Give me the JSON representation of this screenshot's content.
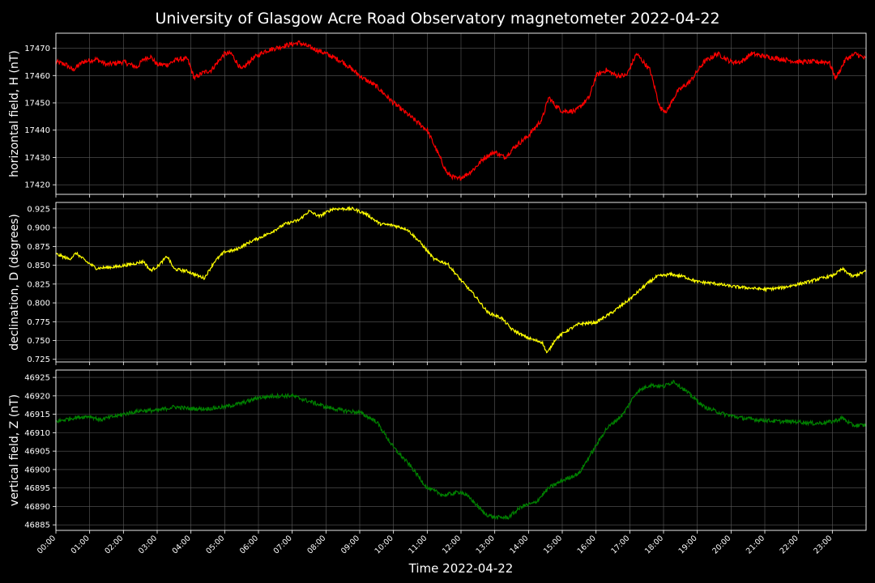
{
  "chart_data": {
    "type": "line",
    "title": "University of Glasgow Acre Road Observatory magnetometer 2022-04-22",
    "xlabel": "Time 2022-04-22",
    "x_ticks": [
      "00:00",
      "01:00",
      "02:00",
      "03:00",
      "04:00",
      "05:00",
      "06:00",
      "07:00",
      "08:00",
      "09:00",
      "10:00",
      "11:00",
      "12:00",
      "13:00",
      "14:00",
      "15:00",
      "16:00",
      "17:00",
      "18:00",
      "19:00",
      "20:00",
      "21:00",
      "22:00",
      "23:00"
    ],
    "xlim_hours": [
      0,
      24
    ],
    "grid": true,
    "colors": {
      "background": "#000000",
      "grid": "#5a5a5a",
      "text": "#ffffff"
    },
    "panels": [
      {
        "ylabel": "horizontal field, H (nT)",
        "color": "#ff0000",
        "ylim": [
          17416.5,
          17475.5
        ],
        "y_ticks": [
          17420,
          17430,
          17440,
          17450,
          17460,
          17470
        ],
        "y_tick_labels": [
          "17420",
          "17430",
          "17440",
          "17450",
          "17460",
          "17470"
        ],
        "noise": 0.9,
        "points": [
          [
            0,
            17465
          ],
          [
            0.3,
            17464
          ],
          [
            0.5,
            17462
          ],
          [
            0.8,
            17465
          ],
          [
            1.2,
            17466
          ],
          [
            1.5,
            17464
          ],
          [
            2,
            17465
          ],
          [
            2.4,
            17463
          ],
          [
            2.6,
            17466
          ],
          [
            2.8,
            17467
          ],
          [
            3.0,
            17464
          ],
          [
            3.3,
            17464
          ],
          [
            3.6,
            17466
          ],
          [
            3.9,
            17466
          ],
          [
            4.1,
            17459
          ],
          [
            4.35,
            17461
          ],
          [
            4.6,
            17462
          ],
          [
            4.8,
            17465
          ],
          [
            5.0,
            17468
          ],
          [
            5.2,
            17468
          ],
          [
            5.5,
            17462
          ],
          [
            5.8,
            17466
          ],
          [
            6.2,
            17469
          ],
          [
            6.8,
            17471
          ],
          [
            7.2,
            17472
          ],
          [
            7.6,
            17470
          ],
          [
            8.0,
            17468
          ],
          [
            8.5,
            17465
          ],
          [
            8.8,
            17462
          ],
          [
            9.1,
            17459
          ],
          [
            9.5,
            17456
          ],
          [
            10.0,
            17450
          ],
          [
            10.5,
            17445
          ],
          [
            11.0,
            17440
          ],
          [
            11.3,
            17432
          ],
          [
            11.6,
            17424
          ],
          [
            11.9,
            17422
          ],
          [
            12.2,
            17424
          ],
          [
            12.4,
            17426
          ],
          [
            12.7,
            17430
          ],
          [
            13.0,
            17432
          ],
          [
            13.3,
            17430
          ],
          [
            13.6,
            17434
          ],
          [
            14.0,
            17438
          ],
          [
            14.4,
            17444
          ],
          [
            14.6,
            17452
          ],
          [
            14.8,
            17449
          ],
          [
            15.0,
            17447
          ],
          [
            15.4,
            17447
          ],
          [
            15.8,
            17452
          ],
          [
            16.0,
            17460
          ],
          [
            16.3,
            17462
          ],
          [
            16.6,
            17460
          ],
          [
            16.9,
            17460
          ],
          [
            17.2,
            17468
          ],
          [
            17.6,
            17462
          ],
          [
            17.9,
            17448
          ],
          [
            18.1,
            17447
          ],
          [
            18.4,
            17454
          ],
          [
            18.8,
            17458
          ],
          [
            19.2,
            17465
          ],
          [
            19.6,
            17468
          ],
          [
            20.0,
            17465
          ],
          [
            20.3,
            17465
          ],
          [
            20.6,
            17468
          ],
          [
            21.0,
            17467
          ],
          [
            21.5,
            17466
          ],
          [
            22.0,
            17465
          ],
          [
            22.5,
            17465
          ],
          [
            22.9,
            17465
          ],
          [
            23.1,
            17459
          ],
          [
            23.4,
            17466
          ],
          [
            23.7,
            17468
          ],
          [
            24,
            17466
          ]
        ]
      },
      {
        "ylabel": "declination, D (degrees)",
        "color": "#ffff00",
        "ylim": [
          0.7215,
          0.9335
        ],
        "y_ticks": [
          0.725,
          0.75,
          0.775,
          0.8,
          0.825,
          0.85,
          0.875,
          0.9,
          0.925
        ],
        "y_tick_labels": [
          "0.725",
          "0.750",
          "0.775",
          "0.800",
          "0.825",
          "0.850",
          "0.875",
          "0.900",
          "0.925"
        ],
        "noise": 0.002,
        "points": [
          [
            0,
            0.865
          ],
          [
            0.4,
            0.858
          ],
          [
            0.6,
            0.866
          ],
          [
            0.9,
            0.855
          ],
          [
            1.2,
            0.846
          ],
          [
            1.8,
            0.848
          ],
          [
            2.3,
            0.852
          ],
          [
            2.6,
            0.855
          ],
          [
            2.8,
            0.843
          ],
          [
            3.0,
            0.848
          ],
          [
            3.3,
            0.862
          ],
          [
            3.5,
            0.845
          ],
          [
            3.9,
            0.842
          ],
          [
            4.2,
            0.836
          ],
          [
            4.4,
            0.833
          ],
          [
            4.7,
            0.855
          ],
          [
            5.0,
            0.868
          ],
          [
            5.3,
            0.87
          ],
          [
            5.8,
            0.882
          ],
          [
            6.3,
            0.892
          ],
          [
            6.8,
            0.905
          ],
          [
            7.2,
            0.91
          ],
          [
            7.5,
            0.922
          ],
          [
            7.8,
            0.915
          ],
          [
            8.2,
            0.925
          ],
          [
            8.8,
            0.925
          ],
          [
            9.2,
            0.918
          ],
          [
            9.6,
            0.905
          ],
          [
            10.0,
            0.903
          ],
          [
            10.4,
            0.898
          ],
          [
            10.8,
            0.88
          ],
          [
            11.2,
            0.858
          ],
          [
            11.6,
            0.852
          ],
          [
            12.0,
            0.83
          ],
          [
            12.4,
            0.81
          ],
          [
            12.8,
            0.787
          ],
          [
            13.2,
            0.78
          ],
          [
            13.5,
            0.765
          ],
          [
            13.9,
            0.755
          ],
          [
            14.2,
            0.75
          ],
          [
            14.4,
            0.748
          ],
          [
            14.55,
            0.733
          ],
          [
            14.8,
            0.752
          ],
          [
            15.1,
            0.762
          ],
          [
            15.5,
            0.772
          ],
          [
            16.0,
            0.774
          ],
          [
            16.5,
            0.788
          ],
          [
            17.0,
            0.805
          ],
          [
            17.5,
            0.825
          ],
          [
            17.8,
            0.835
          ],
          [
            18.2,
            0.838
          ],
          [
            18.6,
            0.835
          ],
          [
            19.0,
            0.828
          ],
          [
            19.5,
            0.826
          ],
          [
            20.0,
            0.822
          ],
          [
            20.5,
            0.82
          ],
          [
            21.0,
            0.818
          ],
          [
            21.5,
            0.82
          ],
          [
            22.0,
            0.825
          ],
          [
            22.3,
            0.828
          ],
          [
            22.6,
            0.832
          ],
          [
            23.0,
            0.836
          ],
          [
            23.3,
            0.845
          ],
          [
            23.6,
            0.835
          ],
          [
            24,
            0.842
          ]
        ]
      },
      {
        "ylabel": "vertical field, Z (nT)",
        "color": "#008000",
        "ylim": [
          46883.5,
          46927
        ],
        "y_ticks": [
          46885,
          46890,
          46895,
          46900,
          46905,
          46910,
          46915,
          46920,
          46925
        ],
        "y_tick_labels": [
          "46885",
          "46890",
          "46895",
          "46900",
          "46905",
          "46910",
          "46915",
          "46920",
          "46925"
        ],
        "noise": 0.55,
        "points": [
          [
            0,
            46913
          ],
          [
            0.5,
            46914
          ],
          [
            1.0,
            46914.5
          ],
          [
            1.3,
            46913.5
          ],
          [
            2.0,
            46915
          ],
          [
            2.5,
            46916
          ],
          [
            3.0,
            46916
          ],
          [
            3.5,
            46917
          ],
          [
            4.0,
            46916.5
          ],
          [
            4.5,
            46916.5
          ],
          [
            5.0,
            46917
          ],
          [
            5.5,
            46918
          ],
          [
            6.0,
            46919.5
          ],
          [
            6.5,
            46920
          ],
          [
            7.0,
            46920
          ],
          [
            7.5,
            46918.5
          ],
          [
            8.0,
            46917
          ],
          [
            8.5,
            46916
          ],
          [
            9.0,
            46915.5
          ],
          [
            9.5,
            46913
          ],
          [
            10.0,
            46906
          ],
          [
            10.5,
            46901
          ],
          [
            11.0,
            46895
          ],
          [
            11.5,
            46893
          ],
          [
            12.0,
            46894
          ],
          [
            12.3,
            46892
          ],
          [
            12.7,
            46888
          ],
          [
            13.0,
            46887
          ],
          [
            13.4,
            46887
          ],
          [
            13.8,
            46890
          ],
          [
            14.2,
            46891
          ],
          [
            14.6,
            46895
          ],
          [
            15.0,
            46897
          ],
          [
            15.5,
            46899
          ],
          [
            15.9,
            46905
          ],
          [
            16.3,
            46911
          ],
          [
            16.8,
            46915
          ],
          [
            17.2,
            46921
          ],
          [
            17.6,
            46923
          ],
          [
            18.0,
            46922.5
          ],
          [
            18.3,
            46924
          ],
          [
            18.7,
            46921
          ],
          [
            19.2,
            46917
          ],
          [
            19.8,
            46915
          ],
          [
            20.3,
            46914
          ],
          [
            20.8,
            46913.5
          ],
          [
            21.5,
            46913
          ],
          [
            22.0,
            46913
          ],
          [
            22.5,
            46912.5
          ],
          [
            23.0,
            46913
          ],
          [
            23.3,
            46914
          ],
          [
            23.6,
            46912
          ],
          [
            24,
            46912
          ]
        ]
      }
    ]
  }
}
